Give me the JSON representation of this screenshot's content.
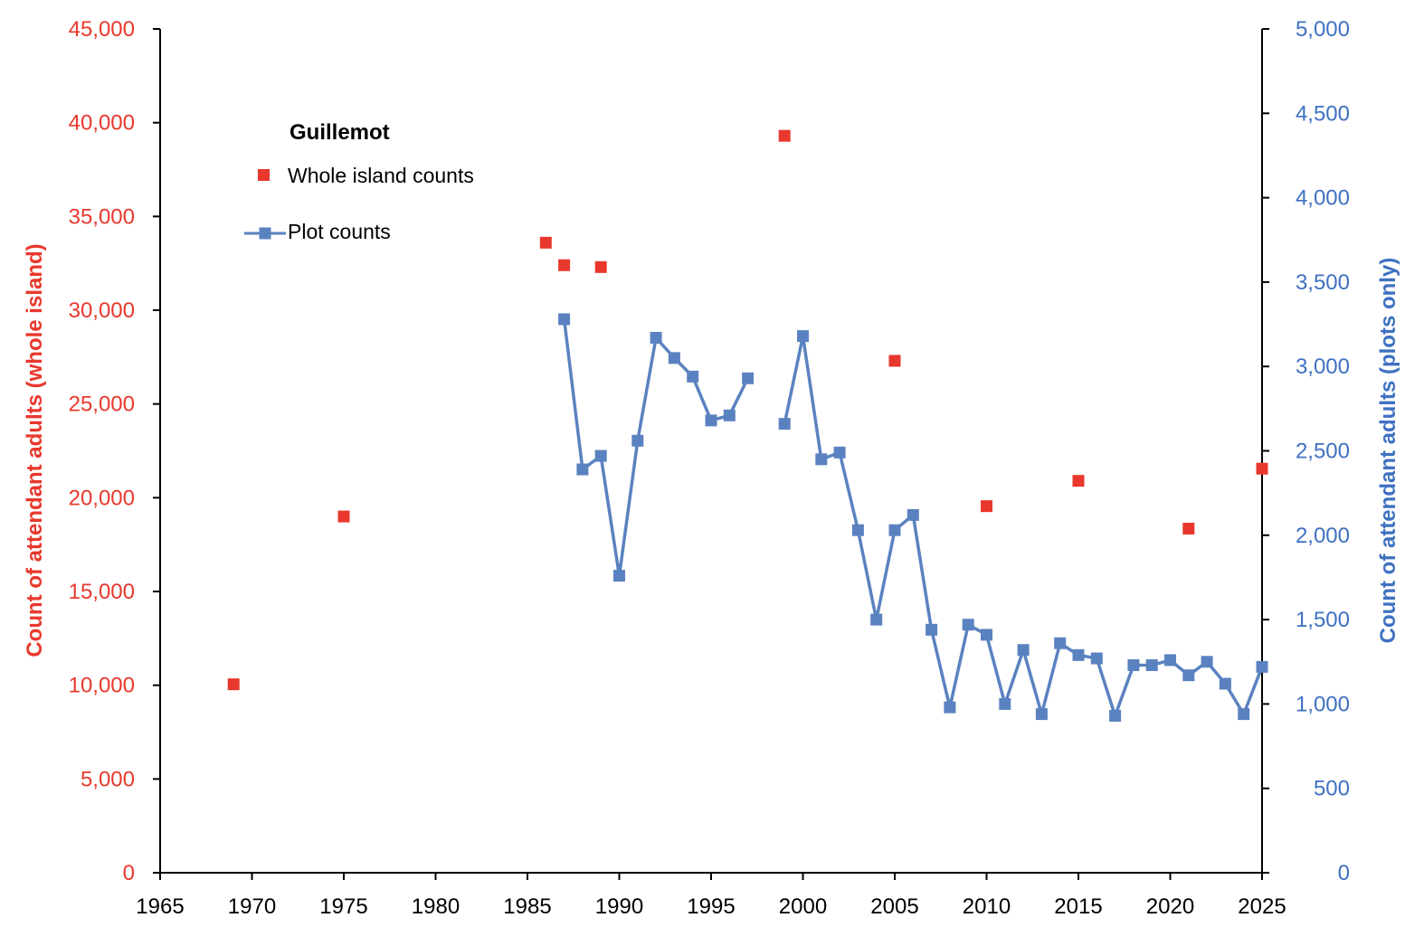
{
  "chart_data": {
    "type": "line",
    "title": "",
    "legend": {
      "title": "Guillemot",
      "placement": "top-left",
      "entries": [
        {
          "label": "Whole island counts",
          "marker": "square",
          "color": "#e8382d"
        },
        {
          "label": "Plot counts",
          "marker": "square-line",
          "color": "#5b82c0"
        }
      ]
    },
    "x_axis": {
      "label": "",
      "range": [
        1965,
        2025
      ],
      "ticks": [
        "1965",
        "1970",
        "1975",
        "1980",
        "1985",
        "1990",
        "1995",
        "2000",
        "2005",
        "2010",
        "2015",
        "2020",
        "2025"
      ]
    },
    "y_left": {
      "label": "Count of attendant adults  (whole island)",
      "range": [
        0,
        45000
      ],
      "color": "#e8382d",
      "ticks": [
        "0",
        "5,000",
        "10,000",
        "15,000",
        "20,000",
        "25,000",
        "30,000",
        "35,000",
        "40,000",
        "45,000"
      ]
    },
    "y_right": {
      "label": "Count of attendant adults  (plots only)",
      "range": [
        0,
        5000
      ],
      "color": "#3f71c1",
      "ticks": [
        "0",
        "500",
        "1,000",
        "1,500",
        "2,000",
        "2,500",
        "3,000",
        "3,500",
        "4,000",
        "4,500",
        "5,000"
      ]
    },
    "grid": false,
    "series": [
      {
        "name": "Whole island counts",
        "axis": "left",
        "style": "markers",
        "color": "#e8382d",
        "points": [
          [
            1969,
            10050
          ],
          [
            1975,
            19000
          ],
          [
            1986,
            33600
          ],
          [
            1987,
            32400
          ],
          [
            1989,
            32300
          ],
          [
            1999,
            39300
          ],
          [
            2005,
            27300
          ],
          [
            2010,
            19550
          ],
          [
            2015,
            20900
          ],
          [
            2021,
            18350
          ],
          [
            2025,
            21550
          ]
        ]
      },
      {
        "name": "Plot counts",
        "axis": "right",
        "style": "line-markers",
        "color": "#5b82c0",
        "segments": [
          [
            [
              1987,
              3280
            ],
            [
              1988,
              2390
            ],
            [
              1989,
              2470
            ],
            [
              1990,
              1760
            ],
            [
              1991,
              2560
            ],
            [
              1992,
              3170
            ],
            [
              1993,
              3050
            ],
            [
              1994,
              2940
            ],
            [
              1995,
              2680
            ],
            [
              1996,
              2710
            ],
            [
              1997,
              2930
            ]
          ],
          [
            [
              1999,
              2660
            ],
            [
              2000,
              3180
            ],
            [
              2001,
              2450
            ],
            [
              2002,
              2490
            ],
            [
              2003,
              2030
            ],
            [
              2004,
              1500
            ],
            [
              2005,
              2030
            ],
            [
              2006,
              2120
            ],
            [
              2007,
              1440
            ],
            [
              2008,
              980
            ],
            [
              2009,
              1470
            ],
            [
              2010,
              1410
            ],
            [
              2011,
              1000
            ],
            [
              2012,
              1320
            ],
            [
              2013,
              940
            ],
            [
              2014,
              1360
            ],
            [
              2015,
              1290
            ],
            [
              2016,
              1270
            ],
            [
              2017,
              930
            ],
            [
              2018,
              1230
            ],
            [
              2019,
              1230
            ],
            [
              2020,
              1260
            ],
            [
              2021,
              1170
            ],
            [
              2022,
              1250
            ],
            [
              2023,
              1120
            ],
            [
              2024,
              940
            ],
            [
              2025,
              1220
            ]
          ]
        ]
      }
    ]
  }
}
